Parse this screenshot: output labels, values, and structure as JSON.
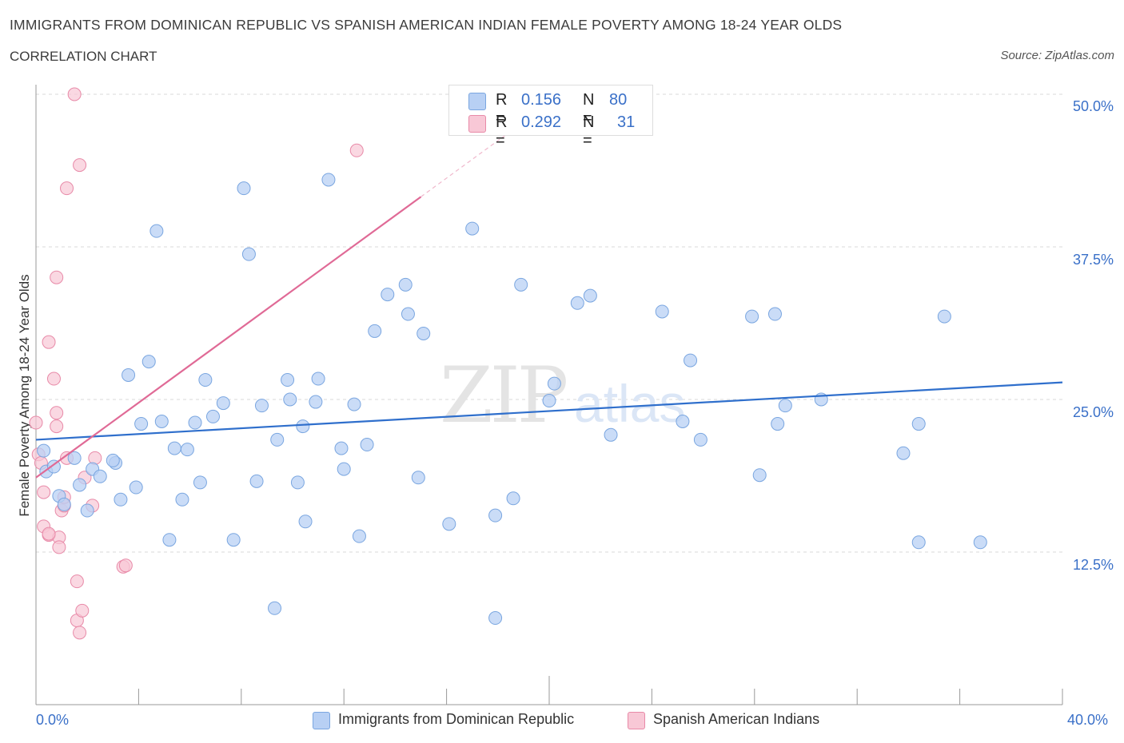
{
  "title": "IMMIGRANTS FROM DOMINICAN REPUBLIC VS SPANISH AMERICAN INDIAN FEMALE POVERTY AMONG 18-24 YEAR OLDS",
  "subtitle": "CORRELATION CHART",
  "source": "Source: ZipAtlas.com",
  "watermark": "ZIPatlas",
  "legend_top": [
    {
      "r_label": "R =",
      "r_value": "0.156",
      "n_label": "N =",
      "n_value": "80"
    },
    {
      "r_label": "R =",
      "r_value": "0.292",
      "n_label": "N =",
      "n_value": "31"
    }
  ],
  "colors": {
    "blue_fill": "#b8d0f4",
    "blue_stroke": "#7aa6e0",
    "blue_line": "#2f6fcc",
    "pink_fill": "#f8c8d6",
    "pink_stroke": "#e88aa8",
    "pink_line": "#e06a96",
    "axis_text": "#3a70c8",
    "grid": "#d9d9d9"
  },
  "chart_data": {
    "type": "scatter",
    "title": "IMMIGRANTS FROM DOMINICAN REPUBLIC VS SPANISH AMERICAN INDIAN FEMALE POVERTY AMONG 18-24 YEAR OLDS",
    "xlabel": "",
    "ylabel": "Female Poverty Among 18-24 Year Olds",
    "xlim": [
      0,
      40
    ],
    "ylim": [
      0,
      50
    ],
    "x_tick_labels": [
      "0.0%",
      "40.0%"
    ],
    "y_ticks": [
      12.5,
      25.0,
      37.5,
      50.0
    ],
    "y_tick_labels": [
      "12.5%",
      "25.0%",
      "37.5%",
      "50.0%"
    ],
    "grid": "horizontal dashed",
    "legend": "bottom-center",
    "series": [
      {
        "name": "Immigrants from Dominican Republic",
        "color": "#b8d0f4",
        "trend": {
          "x": [
            0,
            40
          ],
          "y": [
            21.7,
            26.4
          ]
        },
        "points": [
          [
            0.3,
            20.8
          ],
          [
            0.4,
            19.1
          ],
          [
            0.7,
            19.5
          ],
          [
            0.9,
            17.1
          ],
          [
            1.1,
            16.4
          ],
          [
            1.5,
            20.2
          ],
          [
            1.7,
            18.0
          ],
          [
            2.0,
            15.9
          ],
          [
            2.2,
            19.3
          ],
          [
            2.5,
            18.7
          ],
          [
            3.1,
            19.8
          ],
          [
            3.0,
            20.0
          ],
          [
            3.3,
            16.8
          ],
          [
            3.6,
            27.0
          ],
          [
            3.9,
            17.8
          ],
          [
            4.1,
            23.0
          ],
          [
            4.4,
            28.1
          ],
          [
            4.7,
            38.8
          ],
          [
            4.9,
            23.2
          ],
          [
            5.2,
            13.5
          ],
          [
            5.4,
            21.0
          ],
          [
            5.7,
            16.8
          ],
          [
            5.9,
            20.9
          ],
          [
            6.2,
            23.1
          ],
          [
            6.4,
            18.2
          ],
          [
            6.6,
            26.6
          ],
          [
            6.9,
            23.6
          ],
          [
            7.3,
            24.7
          ],
          [
            7.7,
            13.5
          ],
          [
            8.1,
            42.3
          ],
          [
            8.3,
            36.9
          ],
          [
            8.6,
            18.3
          ],
          [
            8.8,
            24.5
          ],
          [
            9.3,
            7.9
          ],
          [
            9.4,
            21.7
          ],
          [
            9.8,
            26.6
          ],
          [
            9.9,
            25.0
          ],
          [
            10.2,
            18.2
          ],
          [
            10.4,
            22.8
          ],
          [
            10.5,
            15.0
          ],
          [
            10.9,
            24.8
          ],
          [
            11.0,
            26.7
          ],
          [
            11.4,
            43.0
          ],
          [
            11.9,
            21.0
          ],
          [
            12.0,
            19.3
          ],
          [
            12.4,
            24.6
          ],
          [
            12.6,
            13.8
          ],
          [
            12.9,
            21.3
          ],
          [
            13.2,
            30.6
          ],
          [
            13.7,
            33.6
          ],
          [
            14.4,
            34.4
          ],
          [
            14.5,
            32.0
          ],
          [
            14.9,
            18.6
          ],
          [
            15.1,
            30.4
          ],
          [
            16.1,
            14.8
          ],
          [
            17.0,
            39.0
          ],
          [
            17.9,
            15.5
          ],
          [
            17.9,
            7.1
          ],
          [
            18.6,
            16.9
          ],
          [
            18.9,
            34.4
          ],
          [
            20.0,
            24.9
          ],
          [
            20.2,
            26.3
          ],
          [
            21.1,
            32.9
          ],
          [
            21.6,
            33.5
          ],
          [
            22.4,
            22.1
          ],
          [
            24.4,
            32.2
          ],
          [
            25.2,
            23.2
          ],
          [
            25.5,
            28.2
          ],
          [
            25.9,
            21.7
          ],
          [
            27.9,
            31.8
          ],
          [
            28.2,
            18.8
          ],
          [
            28.8,
            32.0
          ],
          [
            28.9,
            23.0
          ],
          [
            29.2,
            24.5
          ],
          [
            30.6,
            25.0
          ],
          [
            33.8,
            20.6
          ],
          [
            34.4,
            23.0
          ],
          [
            35.4,
            31.8
          ],
          [
            34.4,
            13.3
          ],
          [
            36.8,
            13.3
          ]
        ]
      },
      {
        "name": "Spanish American Indians",
        "color": "#f8c8d6",
        "trend": {
          "x": [
            0,
            15
          ],
          "y": [
            18.6,
            41.6
          ]
        },
        "trend_dashed_to": {
          "x": 19.5,
          "y": 48.5
        },
        "points": [
          [
            0.0,
            23.1
          ],
          [
            0.1,
            20.5
          ],
          [
            0.2,
            19.8
          ],
          [
            0.3,
            17.4
          ],
          [
            0.3,
            14.6
          ],
          [
            0.5,
            13.9
          ],
          [
            0.5,
            29.7
          ],
          [
            0.7,
            26.7
          ],
          [
            0.8,
            23.9
          ],
          [
            0.8,
            22.8
          ],
          [
            0.8,
            35.0
          ],
          [
            0.9,
            13.7
          ],
          [
            0.9,
            12.9
          ],
          [
            1.0,
            15.9
          ],
          [
            1.1,
            16.3
          ],
          [
            1.1,
            17.0
          ],
          [
            1.2,
            20.2
          ],
          [
            1.2,
            42.3
          ],
          [
            1.5,
            50.0
          ],
          [
            1.6,
            10.1
          ],
          [
            1.6,
            6.9
          ],
          [
            1.7,
            44.2
          ],
          [
            1.7,
            5.9
          ],
          [
            1.8,
            7.7
          ],
          [
            1.9,
            18.6
          ],
          [
            2.2,
            16.3
          ],
          [
            2.3,
            20.2
          ],
          [
            3.4,
            11.3
          ],
          [
            3.5,
            11.4
          ],
          [
            12.5,
            45.4
          ],
          [
            0.5,
            14.0
          ]
        ]
      }
    ]
  },
  "bottom_legend": [
    {
      "label": "Immigrants from Dominican Republic"
    },
    {
      "label": "Spanish American Indians"
    }
  ]
}
